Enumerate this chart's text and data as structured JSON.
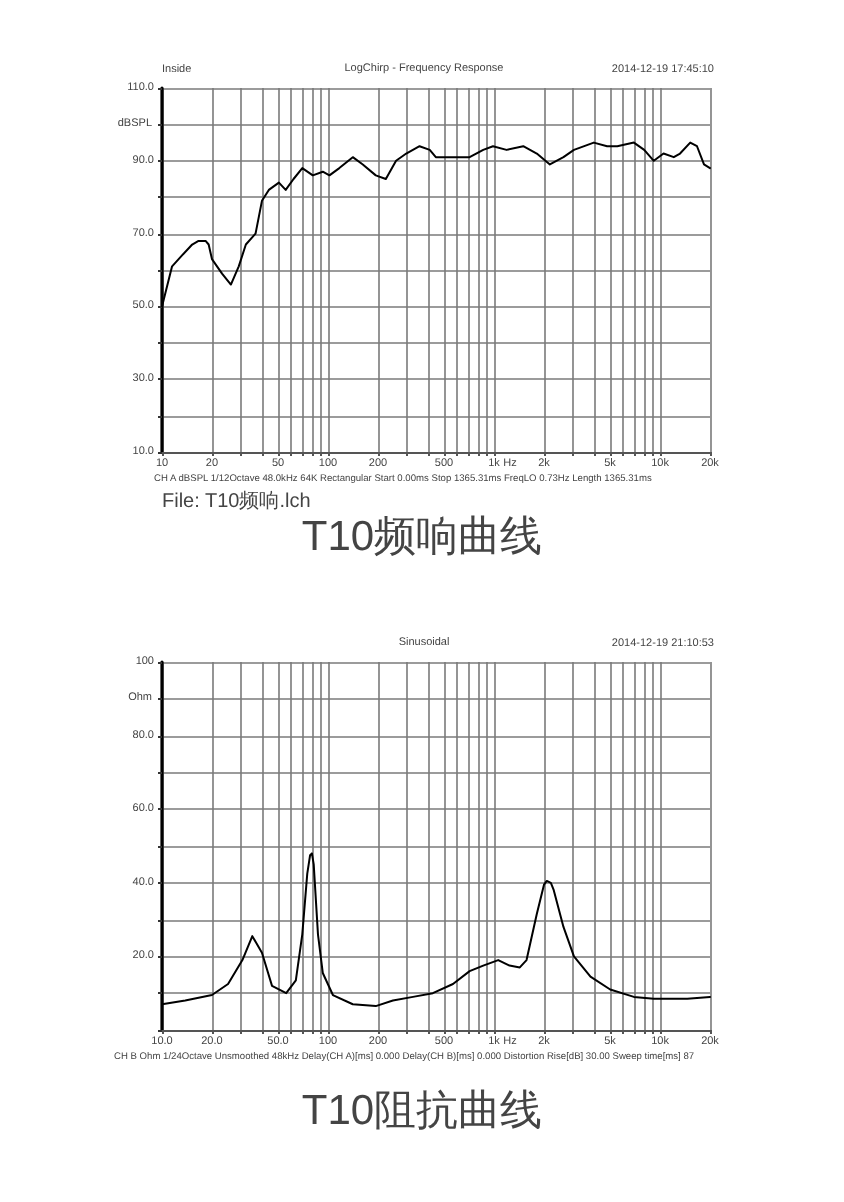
{
  "chart_data": [
    {
      "type": "line",
      "title": "T10频响曲线",
      "subtitle": "LogChirp - Frequency Response",
      "xlabel": "Hz",
      "ylabel": "dBSPL",
      "color": "#000000",
      "line_style": "solid",
      "log": "x",
      "grid": true,
      "x": [
        10,
        11.5,
        13.2,
        15.2,
        16.6,
        18.3,
        19.1,
        20,
        23,
        26,
        29,
        32,
        36.6,
        40,
        44,
        50.6,
        55.6,
        62,
        70,
        81,
        93,
        102,
        117,
        141,
        162,
        194,
        223,
        257,
        296,
        356,
        410,
        446,
        566,
        713,
        861,
        986,
        1190,
        1500,
        1810,
        2170,
        2620,
        3030,
        3990,
        4800,
        5530,
        6960,
        8030,
        9170,
        10500,
        12100,
        13200,
        15200,
        16700,
        18400,
        20000
      ],
      "values": [
        50,
        61,
        64,
        67,
        68,
        68,
        67,
        63,
        59,
        56,
        61,
        67,
        70,
        79,
        82,
        84,
        82,
        85,
        88,
        86,
        87,
        86,
        88,
        91,
        89,
        86,
        85,
        90,
        92,
        94,
        93,
        91,
        91,
        91,
        93,
        94,
        93,
        94,
        92,
        89,
        91,
        93,
        95,
        94,
        94,
        95,
        93,
        90,
        92,
        91,
        92,
        95,
        94,
        89,
        88
      ],
      "xlim": [
        10,
        20000
      ],
      "xticks": [
        10,
        20,
        {
          "value": 30,
          "label": null
        },
        {
          "value": 40,
          "label": null
        },
        50,
        {
          "value": 60,
          "label": null
        },
        {
          "value": 70,
          "label": null
        },
        {
          "value": 80,
          "label": null
        },
        {
          "value": 90,
          "label": null
        },
        100,
        200,
        {
          "value": 300,
          "label": null
        },
        {
          "value": 400,
          "label": null
        },
        500,
        {
          "value": 600,
          "label": null
        },
        {
          "value": 700,
          "label": null
        },
        {
          "value": 800,
          "label": null
        },
        {
          "value": 900,
          "label": null
        },
        {
          "value": 1000,
          "label": "1k"
        },
        {
          "value": 2000,
          "label": "2k"
        },
        {
          "value": 3000,
          "label": null
        },
        {
          "value": 4000,
          "label": null
        },
        {
          "value": 5000,
          "label": "5k"
        },
        {
          "value": 6000,
          "label": null
        },
        {
          "value": 7000,
          "label": null
        },
        {
          "value": 8000,
          "label": null
        },
        {
          "value": 9000,
          "label": null
        },
        {
          "value": 10000,
          "label": "10k"
        },
        {
          "value": 20000,
          "label": "20k"
        }
      ],
      "ylim": [
        10,
        110
      ],
      "yticks": [
        {
          "value": 10,
          "label": "10.0"
        },
        {
          "value": 20,
          "label": null
        },
        {
          "value": 30,
          "label": "30.0"
        },
        {
          "value": 40,
          "label": null
        },
        {
          "value": 50,
          "label": "50.0"
        },
        {
          "value": 60,
          "label": null
        },
        {
          "value": 70,
          "label": "70.0"
        },
        {
          "value": 80,
          "label": null
        },
        {
          "value": 90,
          "label": "90.0"
        },
        {
          "value": 100,
          "label": null
        },
        {
          "value": 110,
          "label": "110.0"
        }
      ],
      "annotations": [
        "Inside",
        "2014-12-19 17:45:10",
        "CH A dBSPL 1/12Octave 48.0kHz 64K Rectangular Start 0.00ms Stop 1365.31ms FreqLO 0.73Hz Length 1365.31ms",
        "File: T10频响.lch"
      ]
    },
    {
      "type": "line",
      "title": "T10阻抗曲线",
      "subtitle": "Sinusoidal",
      "xlabel": "Hz",
      "ylabel": "Ohm",
      "color": "#000000",
      "line_style": "solid",
      "log": "x",
      "grid": true,
      "x": [
        10,
        13.8,
        20,
        25,
        30.5,
        35,
        40,
        46,
        56,
        64,
        70,
        75,
        78,
        80,
        82,
        87,
        93,
        107,
        141,
        194,
        246,
        325,
        428,
        566,
        713,
        861,
        1060,
        1240,
        1430,
        1570,
        1810,
        2000,
        2080,
        2200,
        2290,
        2620,
        3030,
        3810,
        5010,
        6960,
        9170,
        14600,
        20000
      ],
      "values": [
        7,
        8,
        9.5,
        12.5,
        19,
        25.5,
        21,
        12,
        10,
        13.5,
        26,
        42.5,
        47.5,
        48,
        45,
        26,
        15.5,
        9.5,
        7,
        6.5,
        8,
        9,
        10,
        12.5,
        16,
        17.5,
        19,
        17.5,
        17,
        19,
        31.5,
        39.5,
        40.5,
        40,
        38,
        28,
        20,
        14.5,
        11,
        9,
        8.5,
        8.5,
        9
      ],
      "xlim": [
        10,
        20000
      ],
      "xticks": [
        {
          "value": 10,
          "label": "10.0"
        },
        {
          "value": 20,
          "label": "20.0"
        },
        {
          "value": 30,
          "label": null
        },
        {
          "value": 40,
          "label": null
        },
        {
          "value": 50,
          "label": "50.0"
        },
        {
          "value": 60,
          "label": null
        },
        {
          "value": 70,
          "label": null
        },
        {
          "value": 80,
          "label": null
        },
        {
          "value": 90,
          "label": null
        },
        100,
        200,
        {
          "value": 300,
          "label": null
        },
        {
          "value": 400,
          "label": null
        },
        500,
        {
          "value": 600,
          "label": null
        },
        {
          "value": 700,
          "label": null
        },
        {
          "value": 800,
          "label": null
        },
        {
          "value": 900,
          "label": null
        },
        {
          "value": 1000,
          "label": "1k"
        },
        {
          "value": 2000,
          "label": "2k"
        },
        {
          "value": 3000,
          "label": null
        },
        {
          "value": 4000,
          "label": null
        },
        {
          "value": 5000,
          "label": "5k"
        },
        {
          "value": 6000,
          "label": null
        },
        {
          "value": 7000,
          "label": null
        },
        {
          "value": 8000,
          "label": null
        },
        {
          "value": 9000,
          "label": null
        },
        {
          "value": 10000,
          "label": "10k"
        },
        {
          "value": 20000,
          "label": "20k"
        }
      ],
      "ylim": [
        0,
        100
      ],
      "yticks": [
        {
          "value": 0,
          "label": null
        },
        {
          "value": 10,
          "label": null
        },
        {
          "value": 20,
          "label": "20.0"
        },
        {
          "value": 30,
          "label": null
        },
        {
          "value": 40,
          "label": "40.0"
        },
        {
          "value": 50,
          "label": null
        },
        {
          "value": 60,
          "label": "60.0"
        },
        {
          "value": 70,
          "label": null
        },
        {
          "value": 80,
          "label": "80.0"
        },
        {
          "value": 90,
          "label": null
        },
        100
      ],
      "annotations": [
        "2014-12-19 21:10:53",
        "CH B Ohm 1/24Octave Unsmoothed 48kHz Delay(CH A)[ms] 0.000 Delay(CH B)[ms] 0.000 Distortion Rise[dB] 30.00 Sweep time[ms] 87"
      ]
    }
  ]
}
